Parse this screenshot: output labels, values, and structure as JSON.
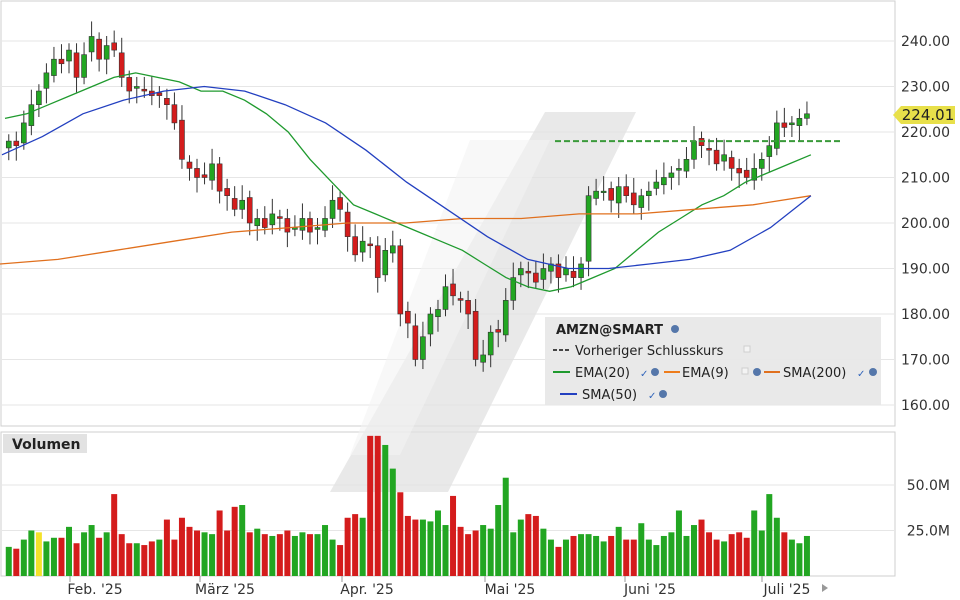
{
  "colors": {
    "up": "#22a622",
    "down": "#d41c1c",
    "ema20": "#1f9a2e",
    "ema9": "#ee7c1b",
    "sma200": "#e0701e",
    "sma50": "#2340c0",
    "prev_close": "#3a9a3a",
    "last_price_badge": "#e8e04a",
    "panel_border": "#cfcfcf",
    "legend_bg": "#eaeaea"
  },
  "instrument": "AMZN@SMART",
  "last_price_label": "224.01",
  "volume_title": "Volumen",
  "x_tick_labels": [
    "Feb. '25",
    "März '25",
    "Apr. '25",
    "Mai '25",
    "Juni '25",
    "Juli '25"
  ],
  "legend": {
    "instrument": "AMZN@SMART",
    "prev_close": "Vorheriger Schlusskurs",
    "ema20": "EMA(20)",
    "ema9": "EMA(9)",
    "sma200": "SMA(200)",
    "sma50": "SMA(50)"
  },
  "chart_data": [
    {
      "type": "candlestick",
      "title": "AMZN@SMART",
      "x_range": [
        "2025-01-13",
        "2025-07-08"
      ],
      "ylim": [
        155,
        250
      ],
      "y_ticks": [
        160,
        170,
        180,
        190,
        200,
        210,
        220,
        230,
        240
      ],
      "y_tick_labels": [
        "160.00",
        "170.00",
        "180.00",
        "190.00",
        "200.00",
        "210.00",
        "220.00",
        "230.00",
        "240.00"
      ],
      "x_tick_labels": [
        "Feb. '25",
        "März '25",
        "Apr. '25",
        "Mai '25",
        "Juni '25",
        "Juli '25"
      ],
      "last_price": 224.01,
      "previous_close_level": 218.0,
      "grid": true,
      "legend_position": "bottom-right",
      "closes": [
        218,
        217,
        222,
        226,
        229,
        233,
        236,
        235,
        238,
        232,
        237,
        241,
        236,
        239,
        238,
        232,
        229,
        230,
        229,
        228,
        228,
        226,
        222,
        214,
        212,
        210,
        210,
        213,
        207,
        206,
        203,
        205,
        200,
        201,
        199,
        202,
        201,
        198,
        199,
        201,
        198,
        199,
        201,
        205,
        203,
        197,
        193,
        196,
        195,
        188,
        194,
        195,
        180,
        178,
        170,
        175,
        180,
        181,
        186,
        184,
        183,
        180,
        170,
        171,
        176,
        176,
        183,
        188,
        190,
        189,
        187,
        190,
        191,
        188,
        190,
        188,
        191,
        206,
        207,
        207,
        205,
        208,
        206,
        204,
        206,
        207,
        209,
        210,
        211,
        212,
        214,
        218,
        217,
        216,
        213,
        215,
        212,
        211,
        210,
        212,
        214,
        217,
        222,
        221,
        222,
        223,
        224
      ],
      "series": [
        {
          "name": "EMA(20)",
          "values": [
            223,
            224,
            226,
            228,
            230,
            232,
            233,
            232,
            231,
            229,
            229,
            227,
            224,
            220,
            214,
            209,
            204,
            202,
            200,
            198,
            196,
            194,
            191,
            188,
            186,
            185,
            186,
            188,
            190,
            194,
            198,
            201,
            204,
            206,
            209,
            211,
            213,
            215
          ]
        },
        {
          "name": "SMA(200)",
          "values": [
            191,
            192,
            194,
            196,
            198,
            199,
            200,
            200,
            201,
            201,
            202,
            202,
            203,
            204,
            206
          ]
        },
        {
          "name": "SMA(50)",
          "values": [
            215,
            219,
            224,
            227,
            229,
            230,
            229,
            226,
            222,
            216,
            209,
            203,
            197,
            192,
            190,
            190,
            191,
            192,
            194,
            199,
            206
          ]
        }
      ]
    },
    {
      "type": "bar",
      "title": "Volumen",
      "ylim": [
        0,
        80
      ],
      "y_ticks": [
        25,
        50
      ],
      "y_tick_labels": [
        "25.0M",
        "50.0M"
      ],
      "unit": "M",
      "values": [
        16,
        15,
        20,
        25,
        24,
        19,
        21,
        21,
        27,
        18,
        24,
        28,
        21,
        24,
        45,
        23,
        18,
        18,
        17,
        19,
        20,
        31,
        20,
        32,
        27,
        25,
        24,
        23,
        36,
        25,
        38,
        39,
        24,
        26,
        23,
        22,
        23,
        25,
        22,
        24,
        23,
        23,
        28,
        20,
        17,
        32,
        34,
        32,
        77,
        77,
        72,
        59,
        46,
        33,
        31,
        31,
        30,
        36,
        28,
        44,
        27,
        23,
        25,
        28,
        26,
        39,
        54,
        24,
        31,
        34,
        33,
        26,
        20,
        16,
        20,
        22,
        23,
        23,
        22,
        19,
        22,
        27,
        20,
        20,
        29,
        20,
        17,
        22,
        24,
        36,
        22,
        28,
        31,
        24,
        20,
        19,
        23,
        24,
        21,
        36,
        25,
        45,
        32,
        24,
        20,
        18,
        22
      ]
    }
  ]
}
